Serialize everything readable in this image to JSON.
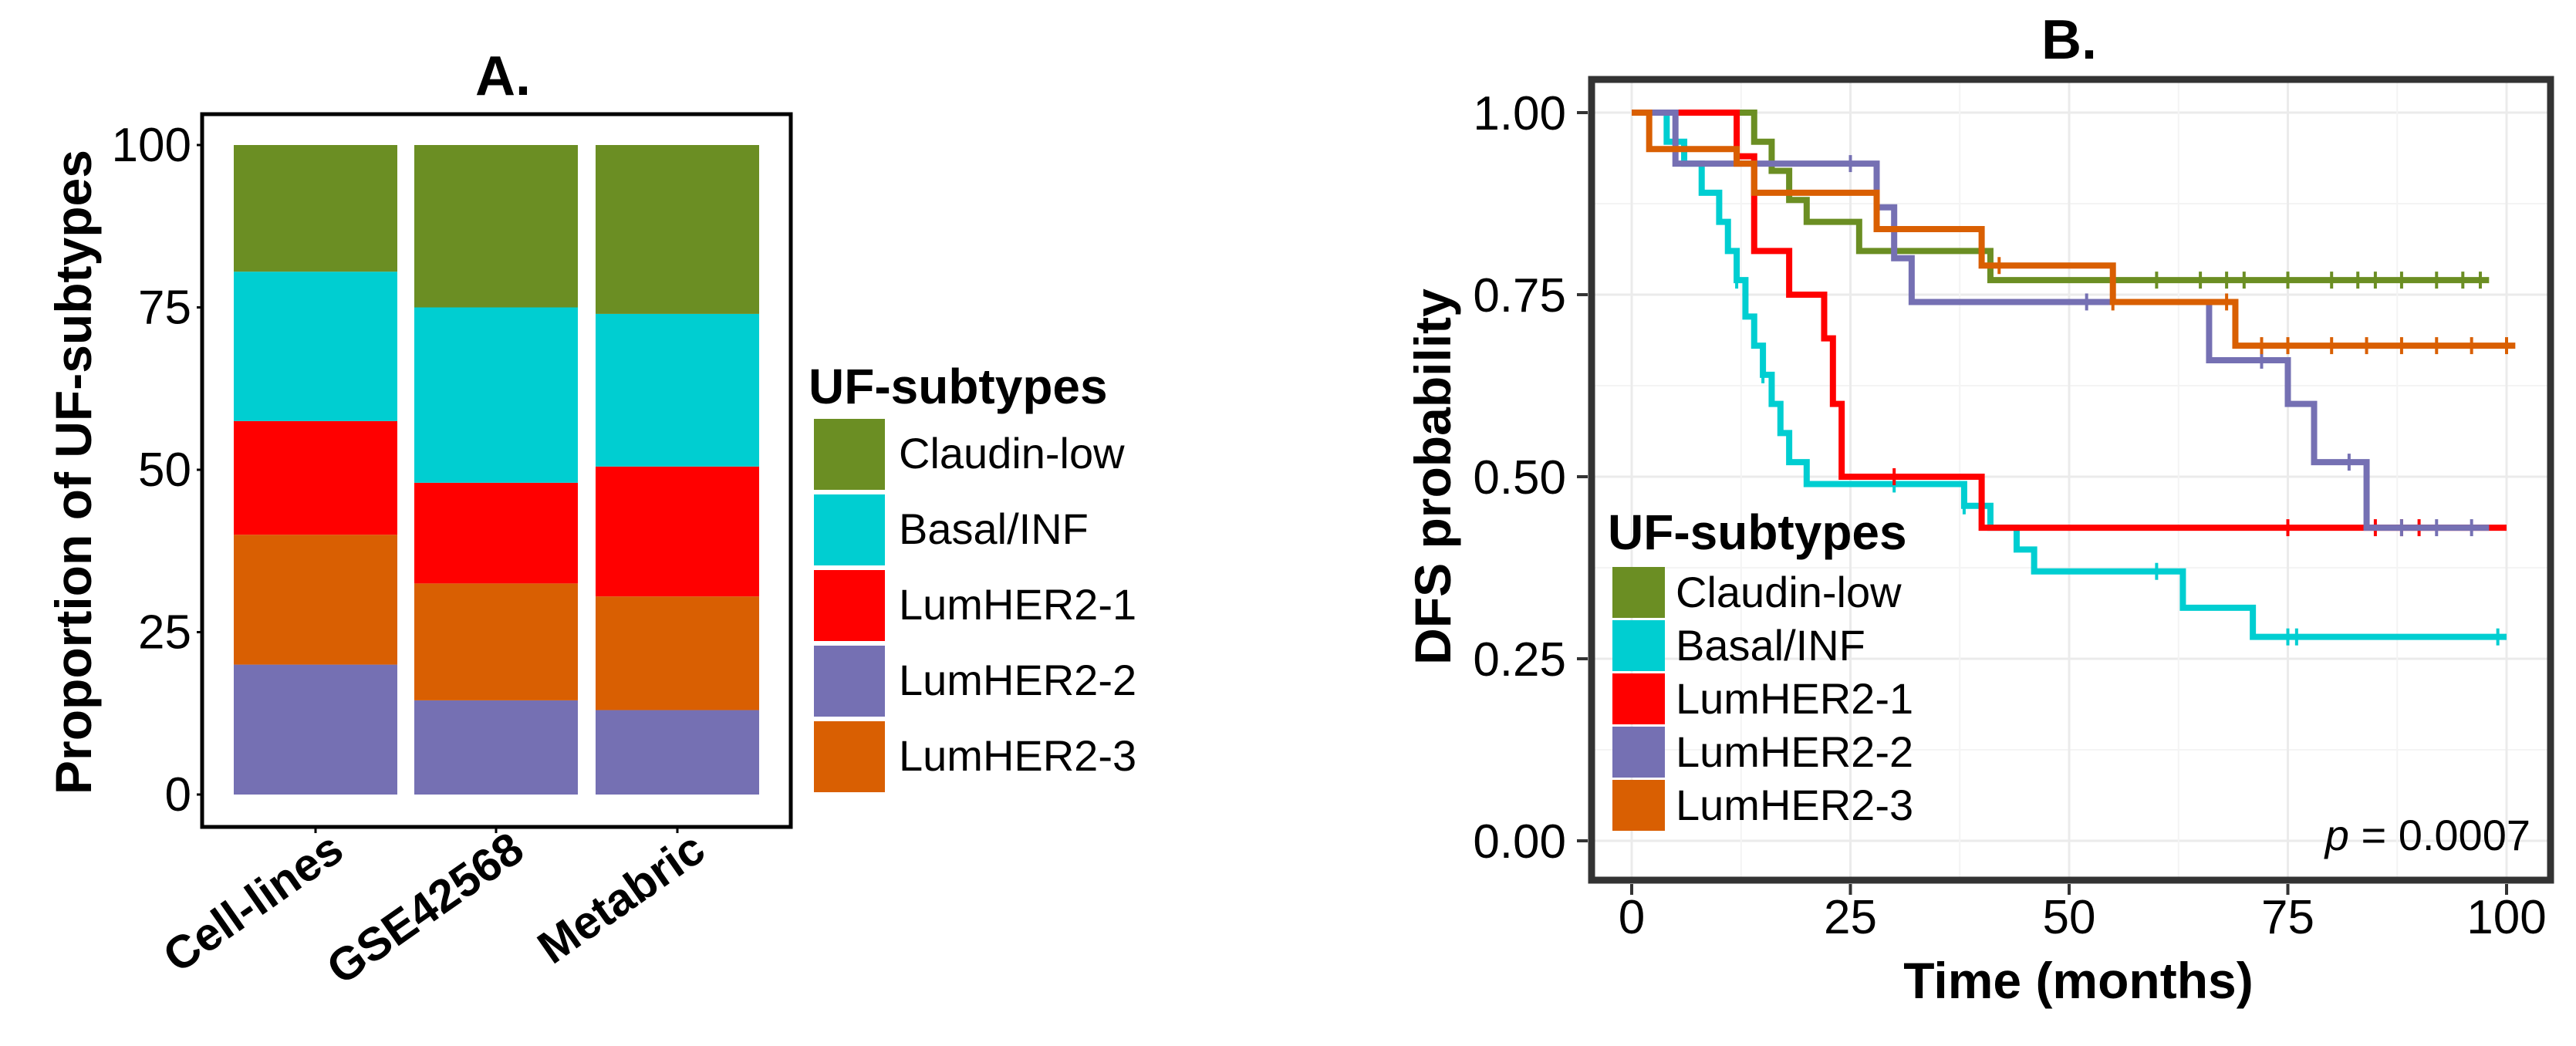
{
  "charts": {
    "a": {
      "title": "A.",
      "ylabel": "Proportion of UF-subtypes",
      "yticks": [
        "0",
        "25",
        "50",
        "75",
        "100"
      ],
      "legend_title": "UF-subtypes"
    },
    "b": {
      "title": "B.",
      "ylabel": "DFS probability",
      "xlabel": "Time (months)",
      "yticks": [
        "0.00",
        "0.25",
        "0.50",
        "0.75",
        "1.00"
      ],
      "xticks": [
        "0",
        "25",
        "50",
        "75",
        "100"
      ],
      "legend_title": "UF-subtypes",
      "pvalue_p": "p",
      "pvalue_rest": " = 0.0007"
    }
  },
  "subtypes": [
    {
      "name": "Claudin-low",
      "color": "#6b8e23"
    },
    {
      "name": "Basal/INF",
      "color": "#00ced1"
    },
    {
      "name": "LumHER2-1",
      "color": "#ff0000"
    },
    {
      "name": "LumHER2-2",
      "color": "#7570b3"
    },
    {
      "name": "LumHER2-3",
      "color": "#d95f02"
    }
  ],
  "chart_data": [
    {
      "type": "bar",
      "stacked": true,
      "title": "A.",
      "xlabel": "",
      "ylabel": "Proportion of UF-subtypes",
      "ylim": [
        0,
        100
      ],
      "categories": [
        "Cell-lines",
        "GSE42568",
        "Metabric"
      ],
      "stack_order_bottom_to_top": [
        "LumHER2-2",
        "LumHER2-3",
        "LumHER2-1",
        "Basal/INF",
        "Claudin-low"
      ],
      "series": [
        {
          "name": "LumHER2-2",
          "values": [
            20,
            14.5,
            13
          ]
        },
        {
          "name": "LumHER2-3",
          "values": [
            20,
            18,
            17.5
          ]
        },
        {
          "name": "LumHER2-1",
          "values": [
            17.5,
            15.5,
            20
          ]
        },
        {
          "name": "Basal/INF",
          "values": [
            23,
            27,
            23.5
          ]
        },
        {
          "name": "Claudin-low",
          "values": [
            19.5,
            25,
            26
          ]
        }
      ],
      "legend": "right"
    },
    {
      "type": "line",
      "subtype": "kaplan-meier step",
      "title": "B.",
      "xlabel": "Time (months)",
      "ylabel": "DFS probability",
      "xlim": [
        -4,
        106
      ],
      "ylim": [
        -0.02,
        1.04
      ],
      "grid": true,
      "legend": "bottom-left inside",
      "annotation": "p = 0.0007",
      "series": [
        {
          "name": "Claudin-low",
          "steps": [
            [
              0,
              1
            ],
            [
              12,
              1
            ],
            [
              14,
              0.96
            ],
            [
              16,
              0.92
            ],
            [
              18,
              0.88
            ],
            [
              20,
              0.85
            ],
            [
              26,
              0.81
            ],
            [
              41,
              0.77
            ],
            [
              98,
              0.77
            ]
          ],
          "censors": [
            55,
            60,
            65,
            68,
            70,
            75,
            80,
            83,
            85,
            88,
            92,
            95,
            97
          ]
        },
        {
          "name": "Basal/INF",
          "steps": [
            [
              0,
              1
            ],
            [
              4,
              0.96
            ],
            [
              6,
              0.93
            ],
            [
              8,
              0.89
            ],
            [
              10,
              0.85
            ],
            [
              11,
              0.81
            ],
            [
              12,
              0.77
            ],
            [
              13,
              0.72
            ],
            [
              14,
              0.68
            ],
            [
              15,
              0.64
            ],
            [
              16,
              0.6
            ],
            [
              17,
              0.56
            ],
            [
              18,
              0.52
            ],
            [
              20,
              0.49
            ],
            [
              38,
              0.46
            ],
            [
              41,
              0.43
            ],
            [
              44,
              0.4
            ],
            [
              46,
              0.37
            ],
            [
              63,
              0.32
            ],
            [
              71,
              0.28
            ],
            [
              100,
              0.28
            ]
          ],
          "censors": [
            12,
            15,
            30,
            38,
            60,
            75,
            76,
            99
          ]
        },
        {
          "name": "LumHER2-1",
          "steps": [
            [
              0,
              1
            ],
            [
              10,
              1
            ],
            [
              12,
              0.94
            ],
            [
              14,
              0.81
            ],
            [
              18,
              0.75
            ],
            [
              22,
              0.69
            ],
            [
              23,
              0.6
            ],
            [
              24,
              0.5
            ],
            [
              40,
              0.43
            ],
            [
              100,
              0.43
            ]
          ],
          "censors": [
            30,
            75,
            85,
            88,
            90
          ]
        },
        {
          "name": "LumHER2-2",
          "steps": [
            [
              0,
              1
            ],
            [
              5,
              0.93
            ],
            [
              28,
              0.87
            ],
            [
              30,
              0.8
            ],
            [
              32,
              0.74
            ],
            [
              66,
              0.66
            ],
            [
              75,
              0.6
            ],
            [
              78,
              0.52
            ],
            [
              84,
              0.43
            ],
            [
              98,
              0.43
            ]
          ],
          "censors": [
            25,
            52,
            72,
            82,
            88,
            92,
            96
          ]
        },
        {
          "name": "LumHER2-3",
          "steps": [
            [
              0,
              1
            ],
            [
              2,
              0.95
            ],
            [
              12,
              0.93
            ],
            [
              14,
              0.89
            ],
            [
              28,
              0.84
            ],
            [
              40,
              0.79
            ],
            [
              55,
              0.74
            ],
            [
              69,
              0.68
            ],
            [
              101,
              0.68
            ]
          ],
          "censors": [
            42,
            55,
            68,
            72,
            75,
            80,
            84,
            88,
            92,
            96,
            100
          ]
        }
      ]
    }
  ]
}
